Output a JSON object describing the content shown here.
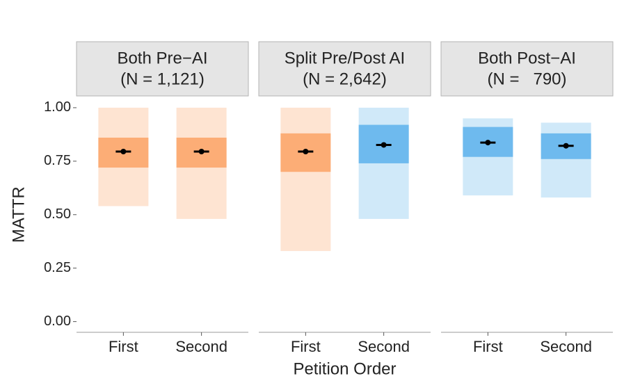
{
  "chart_data": [
    {
      "type": "strip",
      "title": "Both Pre−AI",
      "subtitle": "(N = 1,121)",
      "ylabel": "MATTR",
      "categories": [
        "First",
        "Second"
      ],
      "values": [
        0.795,
        0.795
      ],
      "colors": [
        "#fca66b",
        "#fca66b"
      ],
      "bands": [
        [
          0.72,
          0.86
        ],
        [
          0.72,
          0.86
        ]
      ],
      "ranges": [
        [
          0.54,
          1.0
        ],
        [
          0.48,
          1.0
        ]
      ],
      "ylim": [
        -0.05,
        1.055
      ],
      "yticks": [
        {
          "value": 0,
          "label": "0.00"
        },
        {
          "value": 0.25,
          "label": "0.25"
        },
        {
          "value": 0.5,
          "label": "0.50"
        },
        {
          "value": 0.75,
          "label": "0.75"
        },
        {
          "value": 1,
          "label": "1.00"
        }
      ]
    },
    {
      "type": "strip",
      "title": "Split Pre/Post AI",
      "subtitle": "(N = 2,642)",
      "xlabel": "Petition Order",
      "categories": [
        "First",
        "Second"
      ],
      "values": [
        0.795,
        0.826
      ],
      "colors": [
        "#fca66b",
        "#63b5ec"
      ],
      "bands": [
        [
          0.7,
          0.88
        ],
        [
          0.74,
          0.92
        ]
      ],
      "ranges": [
        [
          0.33,
          1.0
        ],
        [
          0.48,
          1.0
        ]
      ],
      "ylim": [
        -0.05,
        1.055
      ]
    },
    {
      "type": "strip",
      "title": "Both Post−AI",
      "subtitle": "(N =   790)",
      "categories": [
        "First",
        "Second"
      ],
      "values": [
        0.837,
        0.822
      ],
      "colors": [
        "#63b5ec",
        "#63b5ec"
      ],
      "bands": [
        [
          0.77,
          0.91
        ],
        [
          0.76,
          0.88
        ]
      ],
      "ranges": [
        [
          0.59,
          0.95
        ],
        [
          0.58,
          0.93
        ]
      ],
      "ylim": [
        -0.05,
        1.055
      ]
    }
  ]
}
